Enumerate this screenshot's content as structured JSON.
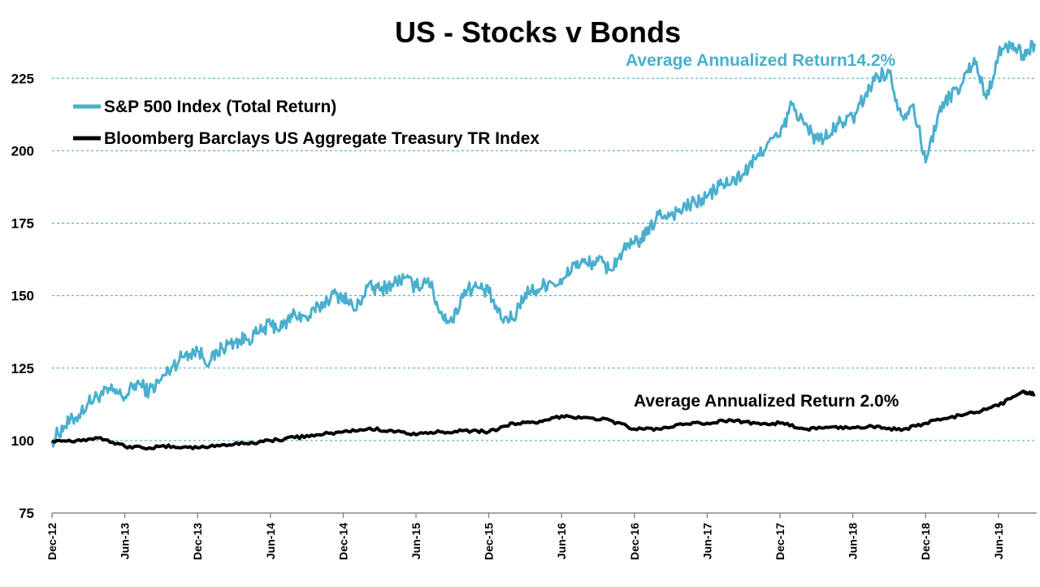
{
  "chart_data": {
    "type": "line",
    "title": "US - Stocks v Bonds",
    "xlabel": "",
    "ylabel": "",
    "ylim": [
      75,
      245
    ],
    "y_ticks": [
      75,
      100,
      125,
      150,
      175,
      200,
      225
    ],
    "x_range": [
      "2012-12",
      "2019-09"
    ],
    "x_ticks": [
      "Dec-12",
      "Jun-13",
      "Dec-13",
      "Jun-14",
      "Dec-14",
      "Jun-15",
      "Dec-15",
      "Jun-16",
      "Dec-16",
      "Jun-17",
      "Dec-17",
      "Jun-18",
      "Dec-18",
      "Jun-19"
    ],
    "x_tick_dates": [
      "2012-12",
      "2013-06",
      "2013-12",
      "2014-06",
      "2014-12",
      "2015-06",
      "2015-12",
      "2016-06",
      "2016-12",
      "2017-06",
      "2017-12",
      "2018-06",
      "2018-12",
      "2019-06"
    ],
    "grid": true,
    "legend_position": "top-left",
    "series": [
      {
        "name": "S&P 500 Index (Total Return)",
        "color": "#4aafcd",
        "annotation": "Average Annualized Return14.2%",
        "points": [
          [
            "2012-12",
            100
          ],
          [
            "2013-01",
            105
          ],
          [
            "2013-02",
            108
          ],
          [
            "2013-03",
            113
          ],
          [
            "2013-04",
            116
          ],
          [
            "2013-05",
            117
          ],
          [
            "2013-06",
            115
          ],
          [
            "2013-07",
            120
          ],
          [
            "2013-08",
            117
          ],
          [
            "2013-09",
            121
          ],
          [
            "2013-10",
            126
          ],
          [
            "2013-11",
            130
          ],
          [
            "2013-12",
            131
          ],
          [
            "2014-01",
            127
          ],
          [
            "2014-02",
            132
          ],
          [
            "2014-03",
            134
          ],
          [
            "2014-04",
            135
          ],
          [
            "2014-05",
            137
          ],
          [
            "2014-06",
            140
          ],
          [
            "2014-07",
            139
          ],
          [
            "2014-08",
            144
          ],
          [
            "2014-09",
            142
          ],
          [
            "2014-10",
            146
          ],
          [
            "2014-11",
            150
          ],
          [
            "2014-12",
            150
          ],
          [
            "2015-01",
            145
          ],
          [
            "2015-02",
            153
          ],
          [
            "2015-03",
            152
          ],
          [
            "2015-04",
            154
          ],
          [
            "2015-05",
            156
          ],
          [
            "2015-06",
            153
          ],
          [
            "2015-07",
            156
          ],
          [
            "2015-08",
            144
          ],
          [
            "2015-09",
            141
          ],
          [
            "2015-10",
            152
          ],
          [
            "2015-11",
            153
          ],
          [
            "2015-12",
            151
          ],
          [
            "2016-01",
            142
          ],
          [
            "2016-02",
            142
          ],
          [
            "2016-03",
            151
          ],
          [
            "2016-04",
            152
          ],
          [
            "2016-05",
            155
          ],
          [
            "2016-06",
            154
          ],
          [
            "2016-07",
            161
          ],
          [
            "2016-08",
            161
          ],
          [
            "2016-09",
            162
          ],
          [
            "2016-10",
            159
          ],
          [
            "2016-11",
            165
          ],
          [
            "2016-12",
            168
          ],
          [
            "2017-01",
            171
          ],
          [
            "2017-02",
            178
          ],
          [
            "2017-03",
            178
          ],
          [
            "2017-04",
            180
          ],
          [
            "2017-05",
            182
          ],
          [
            "2017-06",
            184
          ],
          [
            "2017-07",
            188
          ],
          [
            "2017-08",
            189
          ],
          [
            "2017-09",
            192
          ],
          [
            "2017-10",
            197
          ],
          [
            "2017-11",
            203
          ],
          [
            "2017-12",
            205
          ],
          [
            "2018-01",
            216
          ],
          [
            "2018-02",
            209
          ],
          [
            "2018-03",
            204
          ],
          [
            "2018-04",
            205
          ],
          [
            "2018-05",
            210
          ],
          [
            "2018-06",
            211
          ],
          [
            "2018-07",
            219
          ],
          [
            "2018-08",
            226
          ],
          [
            "2018-09",
            227
          ],
          [
            "2018-10",
            212
          ],
          [
            "2018-11",
            216
          ],
          [
            "2018-12",
            196
          ],
          [
            "2019-01",
            212
          ],
          [
            "2019-02",
            219
          ],
          [
            "2019-03",
            223
          ],
          [
            "2019-04",
            232
          ],
          [
            "2019-05",
            218
          ],
          [
            "2019-06",
            233
          ],
          [
            "2019-07",
            237
          ],
          [
            "2019-08",
            233
          ],
          [
            "2019-09",
            237
          ]
        ]
      },
      {
        "name": "Bloomberg Barclays US Aggregate Treasury TR Index",
        "color": "#000000",
        "annotation": "Average Annualized Return 2.0%",
        "points": [
          [
            "2012-12",
            100
          ],
          [
            "2013-02",
            100
          ],
          [
            "2013-04",
            101
          ],
          [
            "2013-06",
            98
          ],
          [
            "2013-08",
            97.5
          ],
          [
            "2013-10",
            98
          ],
          [
            "2013-12",
            97.5
          ],
          [
            "2014-02",
            98.5
          ],
          [
            "2014-04",
            99
          ],
          [
            "2014-06",
            100
          ],
          [
            "2014-08",
            101
          ],
          [
            "2014-10",
            102
          ],
          [
            "2014-12",
            103
          ],
          [
            "2015-02",
            104
          ],
          [
            "2015-04",
            103.5
          ],
          [
            "2015-06",
            102
          ],
          [
            "2015-08",
            103
          ],
          [
            "2015-10",
            103.5
          ],
          [
            "2015-12",
            103
          ],
          [
            "2016-02",
            106
          ],
          [
            "2016-04",
            106
          ],
          [
            "2016-06",
            108.5
          ],
          [
            "2016-08",
            108
          ],
          [
            "2016-10",
            107
          ],
          [
            "2016-12",
            104
          ],
          [
            "2017-02",
            104
          ],
          [
            "2017-04",
            105.5
          ],
          [
            "2017-06",
            106
          ],
          [
            "2017-08",
            107
          ],
          [
            "2017-10",
            106
          ],
          [
            "2017-12",
            106
          ],
          [
            "2018-02",
            104
          ],
          [
            "2018-04",
            104.5
          ],
          [
            "2018-06",
            104.5
          ],
          [
            "2018-08",
            105
          ],
          [
            "2018-10",
            103.5
          ],
          [
            "2018-12",
            106
          ],
          [
            "2019-02",
            108
          ],
          [
            "2019-04",
            109.5
          ],
          [
            "2019-06",
            112
          ],
          [
            "2019-08",
            117
          ],
          [
            "2019-09",
            116
          ]
        ]
      }
    ]
  }
}
